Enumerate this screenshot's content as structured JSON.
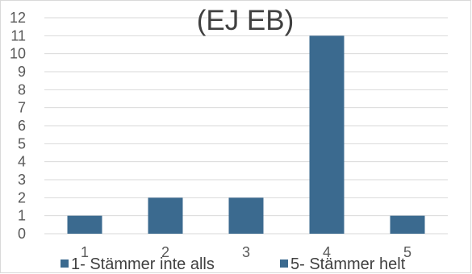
{
  "chart_data": {
    "type": "bar",
    "title": "(EJ EB)",
    "categories": [
      "1",
      "2",
      "3",
      "4",
      "5"
    ],
    "values": [
      1,
      2,
      2,
      11,
      1
    ],
    "ylim": [
      0,
      12
    ],
    "yticks": [
      "0",
      "1",
      "2",
      "3",
      "4",
      "5",
      "6",
      "7",
      "8",
      "9",
      "10",
      "11",
      "12"
    ],
    "grid": true,
    "bar_color": "#3b6a8f",
    "legend": {
      "placement": "bottom",
      "entries": [
        "1- Stämmer inte alls",
        "5- Stämmer helt"
      ]
    }
  }
}
